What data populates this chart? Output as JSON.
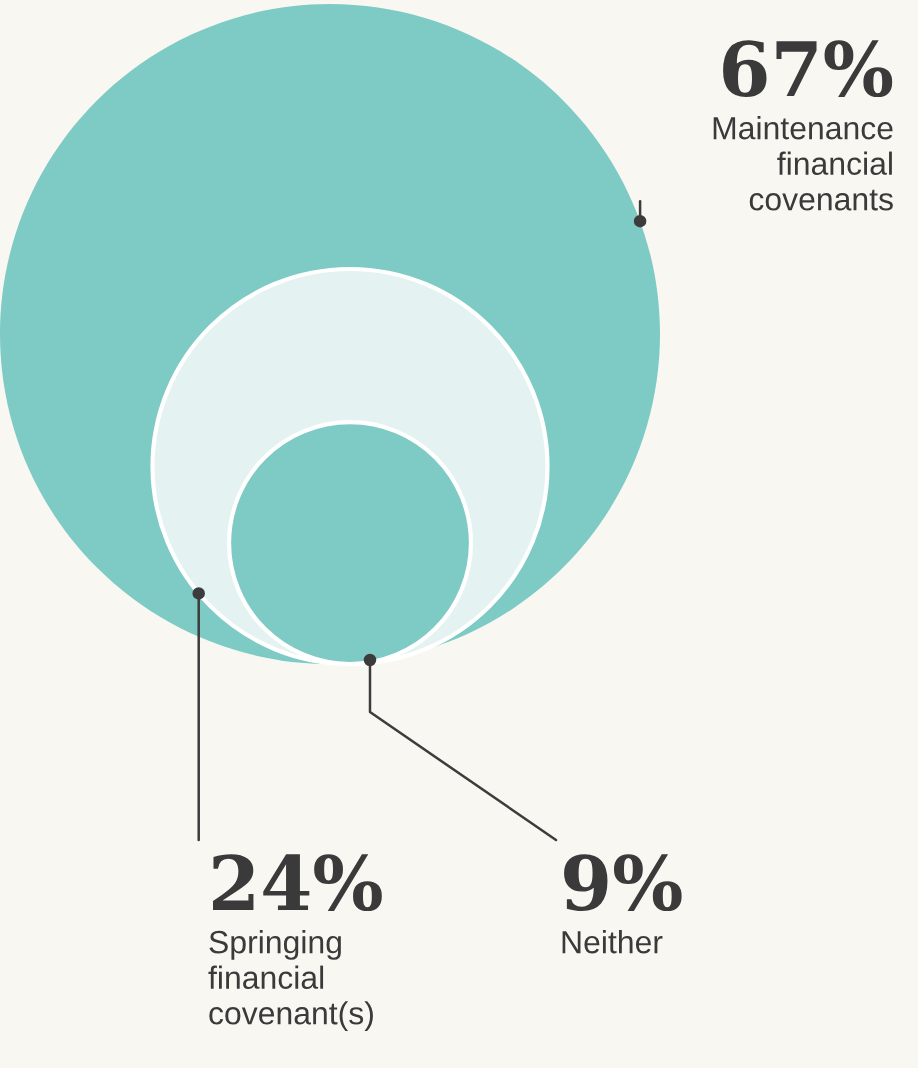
{
  "chart_data": {
    "type": "other",
    "categories": [
      "Maintenance\nfinancial\ncovenants",
      "Springing\nfinancial\ncovenant(s)",
      "Neither"
    ],
    "values": [
      67,
      24,
      9
    ],
    "value_labels": [
      "67%",
      "24%",
      "9%"
    ],
    "colors": [
      "#7ecac4",
      "#e4f3f1",
      "#7ecac4"
    ]
  }
}
